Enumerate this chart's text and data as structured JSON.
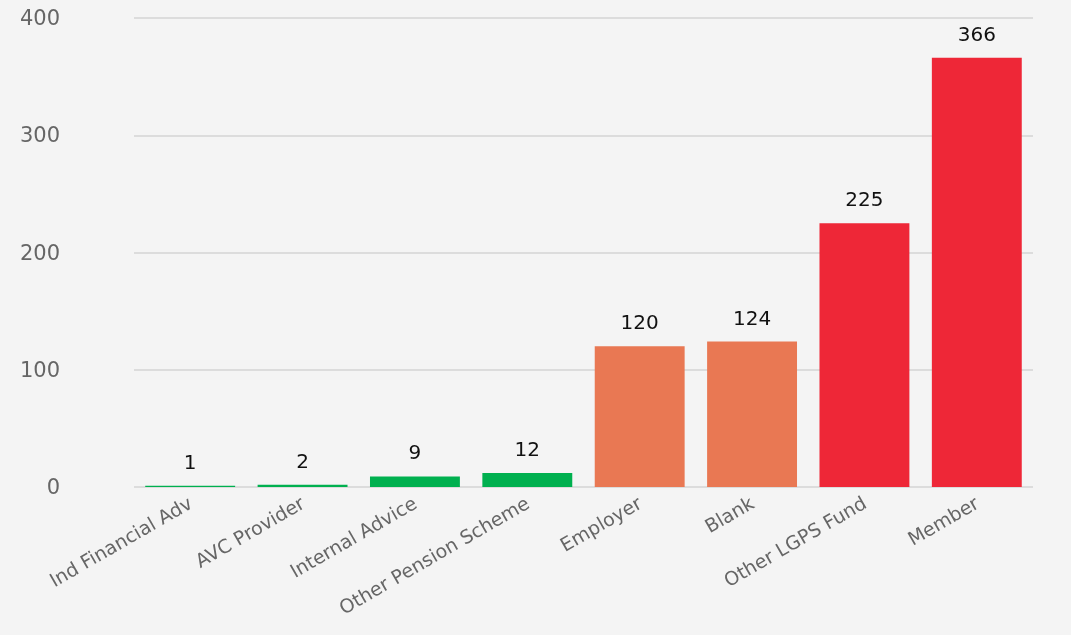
{
  "chart_data": {
    "type": "bar",
    "categories": [
      "Ind Financial Adv",
      "AVC Provider",
      "Internal Advice",
      "Other Pension Scheme",
      "Employer",
      "Blank",
      "Other LGPS Fund",
      "Member"
    ],
    "values": [
      1,
      2,
      9,
      12,
      120,
      124,
      225,
      366
    ],
    "colors": [
      "#00b04f",
      "#00b04f",
      "#00b04f",
      "#00b04f",
      "#e97853",
      "#e97853",
      "#ee2737",
      "#ee2737"
    ],
    "ylim": [
      0,
      400
    ],
    "yticks": [
      0,
      100,
      200,
      300,
      400
    ],
    "grid": "y",
    "data_labels": true
  }
}
